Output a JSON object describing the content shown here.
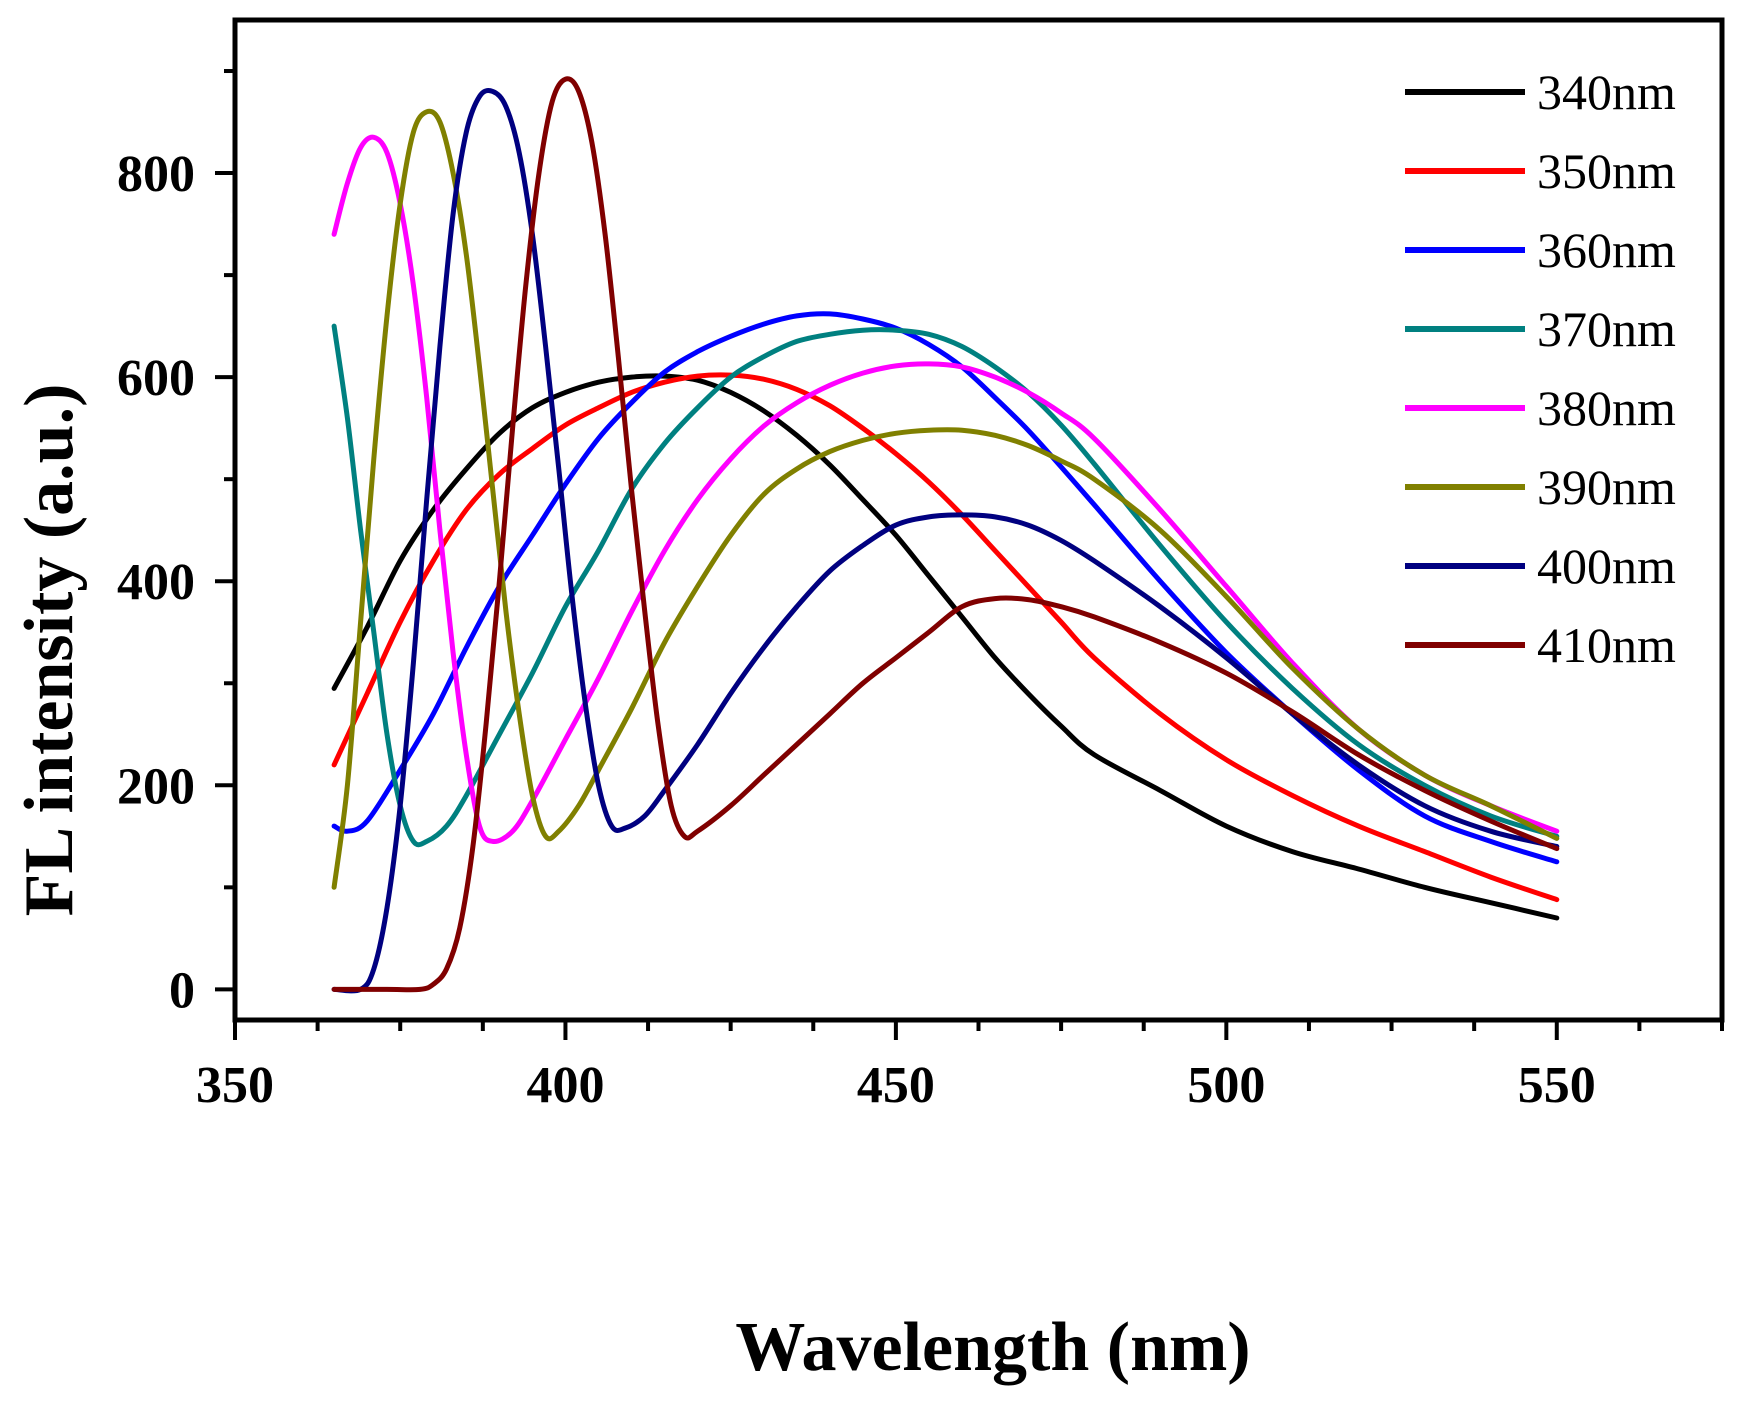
{
  "chart_data": {
    "type": "line",
    "title": "",
    "xlabel": "Wavelength (nm)",
    "ylabel": "FL intensity (a.u.)",
    "xlim": [
      350,
      575
    ],
    "ylim": [
      -30,
      950
    ],
    "xticks": [
      350,
      400,
      450,
      500,
      550
    ],
    "xtick_labels": [
      "350",
      "400",
      "450",
      "500",
      "550"
    ],
    "yticks": [
      0,
      200,
      400,
      600,
      800
    ],
    "ytick_labels": [
      "0",
      "200",
      "400",
      "600",
      "800"
    ],
    "grid": false,
    "legend_position": "top-right",
    "series": [
      {
        "name": "340nm",
        "color": "#000000",
        "points": [
          [
            365,
            295
          ],
          [
            370,
            355
          ],
          [
            375,
            420
          ],
          [
            380,
            470
          ],
          [
            385,
            510
          ],
          [
            390,
            545
          ],
          [
            395,
            570
          ],
          [
            400,
            585
          ],
          [
            405,
            595
          ],
          [
            410,
            600
          ],
          [
            415,
            601
          ],
          [
            420,
            597
          ],
          [
            425,
            585
          ],
          [
            430,
            567
          ],
          [
            435,
            543
          ],
          [
            440,
            514
          ],
          [
            445,
            480
          ],
          [
            450,
            445
          ],
          [
            455,
            405
          ],
          [
            460,
            365
          ],
          [
            465,
            325
          ],
          [
            470,
            290
          ],
          [
            475,
            258
          ],
          [
            480,
            230
          ],
          [
            490,
            195
          ],
          [
            500,
            160
          ],
          [
            510,
            135
          ],
          [
            520,
            118
          ],
          [
            530,
            100
          ],
          [
            540,
            85
          ],
          [
            550,
            70
          ]
        ]
      },
      {
        "name": "350nm",
        "color": "#ff0000",
        "points": [
          [
            365,
            220
          ],
          [
            370,
            290
          ],
          [
            375,
            360
          ],
          [
            380,
            420
          ],
          [
            385,
            470
          ],
          [
            390,
            505
          ],
          [
            395,
            530
          ],
          [
            400,
            553
          ],
          [
            405,
            570
          ],
          [
            410,
            585
          ],
          [
            415,
            595
          ],
          [
            420,
            601
          ],
          [
            425,
            602
          ],
          [
            430,
            598
          ],
          [
            435,
            588
          ],
          [
            440,
            572
          ],
          [
            445,
            550
          ],
          [
            450,
            525
          ],
          [
            455,
            497
          ],
          [
            460,
            465
          ],
          [
            465,
            430
          ],
          [
            470,
            395
          ],
          [
            475,
            360
          ],
          [
            480,
            325
          ],
          [
            490,
            270
          ],
          [
            500,
            225
          ],
          [
            510,
            190
          ],
          [
            520,
            160
          ],
          [
            530,
            135
          ],
          [
            540,
            110
          ],
          [
            550,
            88
          ]
        ]
      },
      {
        "name": "360nm",
        "color": "#0000ff",
        "points": [
          [
            365,
            160
          ],
          [
            367,
            155
          ],
          [
            370,
            165
          ],
          [
            375,
            215
          ],
          [
            380,
            270
          ],
          [
            385,
            335
          ],
          [
            390,
            395
          ],
          [
            395,
            445
          ],
          [
            400,
            495
          ],
          [
            405,
            540
          ],
          [
            410,
            575
          ],
          [
            415,
            605
          ],
          [
            420,
            625
          ],
          [
            425,
            640
          ],
          [
            430,
            652
          ],
          [
            435,
            660
          ],
          [
            440,
            662
          ],
          [
            445,
            657
          ],
          [
            450,
            648
          ],
          [
            455,
            632
          ],
          [
            460,
            610
          ],
          [
            465,
            580
          ],
          [
            470,
            548
          ],
          [
            475,
            512
          ],
          [
            480,
            475
          ],
          [
            490,
            400
          ],
          [
            500,
            330
          ],
          [
            510,
            270
          ],
          [
            520,
            215
          ],
          [
            530,
            170
          ],
          [
            540,
            145
          ],
          [
            550,
            125
          ]
        ]
      },
      {
        "name": "370nm",
        "color": "#008080",
        "points": [
          [
            365,
            650
          ],
          [
            367,
            560
          ],
          [
            369,
            450
          ],
          [
            371,
            350
          ],
          [
            373,
            250
          ],
          [
            375,
            180
          ],
          [
            377,
            145
          ],
          [
            379,
            145
          ],
          [
            382,
            160
          ],
          [
            385,
            190
          ],
          [
            390,
            250
          ],
          [
            395,
            310
          ],
          [
            400,
            375
          ],
          [
            405,
            430
          ],
          [
            410,
            490
          ],
          [
            415,
            535
          ],
          [
            420,
            570
          ],
          [
            425,
            600
          ],
          [
            430,
            620
          ],
          [
            435,
            635
          ],
          [
            440,
            642
          ],
          [
            445,
            646
          ],
          [
            450,
            646
          ],
          [
            455,
            642
          ],
          [
            460,
            630
          ],
          [
            465,
            610
          ],
          [
            470,
            585
          ],
          [
            475,
            553
          ],
          [
            480,
            515
          ],
          [
            490,
            435
          ],
          [
            500,
            360
          ],
          [
            510,
            295
          ],
          [
            520,
            240
          ],
          [
            530,
            200
          ],
          [
            540,
            170
          ],
          [
            550,
            150
          ]
        ]
      },
      {
        "name": "380nm",
        "color": "#ff00ff",
        "points": [
          [
            365,
            740
          ],
          [
            367,
            790
          ],
          [
            369,
            825
          ],
          [
            371,
            835
          ],
          [
            373,
            820
          ],
          [
            375,
            770
          ],
          [
            377,
            690
          ],
          [
            379,
            580
          ],
          [
            381,
            450
          ],
          [
            383,
            330
          ],
          [
            385,
            230
          ],
          [
            387,
            160
          ],
          [
            389,
            145
          ],
          [
            392,
            155
          ],
          [
            395,
            185
          ],
          [
            400,
            245
          ],
          [
            405,
            305
          ],
          [
            410,
            370
          ],
          [
            415,
            430
          ],
          [
            420,
            480
          ],
          [
            425,
            520
          ],
          [
            430,
            552
          ],
          [
            435,
            575
          ],
          [
            440,
            592
          ],
          [
            445,
            604
          ],
          [
            450,
            611
          ],
          [
            455,
            613
          ],
          [
            460,
            610
          ],
          [
            465,
            600
          ],
          [
            470,
            585
          ],
          [
            475,
            565
          ],
          [
            480,
            540
          ],
          [
            490,
            470
          ],
          [
            500,
            395
          ],
          [
            510,
            320
          ],
          [
            520,
            255
          ],
          [
            530,
            210
          ],
          [
            540,
            180
          ],
          [
            550,
            155
          ]
        ]
      },
      {
        "name": "390nm",
        "color": "#808000",
        "points": [
          [
            365,
            100
          ],
          [
            367,
            200
          ],
          [
            369,
            360
          ],
          [
            371,
            520
          ],
          [
            373,
            660
          ],
          [
            375,
            770
          ],
          [
            377,
            840
          ],
          [
            379,
            860
          ],
          [
            381,
            850
          ],
          [
            383,
            800
          ],
          [
            385,
            720
          ],
          [
            387,
            610
          ],
          [
            389,
            490
          ],
          [
            391,
            370
          ],
          [
            393,
            270
          ],
          [
            395,
            190
          ],
          [
            397,
            150
          ],
          [
            399,
            155
          ],
          [
            402,
            180
          ],
          [
            405,
            215
          ],
          [
            410,
            275
          ],
          [
            415,
            340
          ],
          [
            420,
            395
          ],
          [
            425,
            445
          ],
          [
            430,
            485
          ],
          [
            435,
            510
          ],
          [
            440,
            527
          ],
          [
            445,
            538
          ],
          [
            450,
            545
          ],
          [
            455,
            548
          ],
          [
            460,
            548
          ],
          [
            465,
            543
          ],
          [
            470,
            533
          ],
          [
            475,
            518
          ],
          [
            480,
            500
          ],
          [
            490,
            450
          ],
          [
            500,
            385
          ],
          [
            510,
            315
          ],
          [
            520,
            255
          ],
          [
            530,
            210
          ],
          [
            540,
            180
          ],
          [
            550,
            148
          ]
        ]
      },
      {
        "name": "400nm",
        "color": "#000080",
        "points": [
          [
            365,
            0
          ],
          [
            369,
            0
          ],
          [
            371,
            20
          ],
          [
            373,
            80
          ],
          [
            375,
            180
          ],
          [
            377,
            320
          ],
          [
            379,
            480
          ],
          [
            381,
            630
          ],
          [
            383,
            760
          ],
          [
            385,
            840
          ],
          [
            387,
            875
          ],
          [
            389,
            880
          ],
          [
            391,
            865
          ],
          [
            393,
            820
          ],
          [
            395,
            740
          ],
          [
            397,
            630
          ],
          [
            399,
            510
          ],
          [
            401,
            385
          ],
          [
            403,
            280
          ],
          [
            405,
            200
          ],
          [
            407,
            160
          ],
          [
            409,
            158
          ],
          [
            412,
            170
          ],
          [
            415,
            195
          ],
          [
            420,
            240
          ],
          [
            425,
            290
          ],
          [
            430,
            335
          ],
          [
            435,
            375
          ],
          [
            440,
            410
          ],
          [
            445,
            435
          ],
          [
            450,
            455
          ],
          [
            455,
            463
          ],
          [
            460,
            465
          ],
          [
            465,
            463
          ],
          [
            470,
            455
          ],
          [
            475,
            440
          ],
          [
            480,
            420
          ],
          [
            490,
            375
          ],
          [
            500,
            325
          ],
          [
            510,
            270
          ],
          [
            520,
            220
          ],
          [
            530,
            180
          ],
          [
            540,
            155
          ],
          [
            550,
            140
          ]
        ]
      },
      {
        "name": "410nm",
        "color": "#800000",
        "points": [
          [
            365,
            0
          ],
          [
            373,
            0
          ],
          [
            378,
            0
          ],
          [
            380,
            5
          ],
          [
            382,
            20
          ],
          [
            384,
            60
          ],
          [
            386,
            140
          ],
          [
            388,
            260
          ],
          [
            390,
            400
          ],
          [
            392,
            550
          ],
          [
            394,
            690
          ],
          [
            396,
            800
          ],
          [
            398,
            870
          ],
          [
            400,
            892
          ],
          [
            402,
            880
          ],
          [
            404,
            830
          ],
          [
            406,
            740
          ],
          [
            408,
            620
          ],
          [
            410,
            490
          ],
          [
            412,
            370
          ],
          [
            414,
            260
          ],
          [
            416,
            180
          ],
          [
            418,
            150
          ],
          [
            420,
            155
          ],
          [
            425,
            180
          ],
          [
            430,
            210
          ],
          [
            435,
            240
          ],
          [
            440,
            270
          ],
          [
            445,
            300
          ],
          [
            450,
            325
          ],
          [
            455,
            350
          ],
          [
            460,
            375
          ],
          [
            465,
            383
          ],
          [
            470,
            382
          ],
          [
            475,
            375
          ],
          [
            480,
            365
          ],
          [
            490,
            340
          ],
          [
            500,
            310
          ],
          [
            510,
            272
          ],
          [
            520,
            230
          ],
          [
            530,
            195
          ],
          [
            540,
            165
          ],
          [
            550,
            138
          ]
        ]
      }
    ]
  }
}
